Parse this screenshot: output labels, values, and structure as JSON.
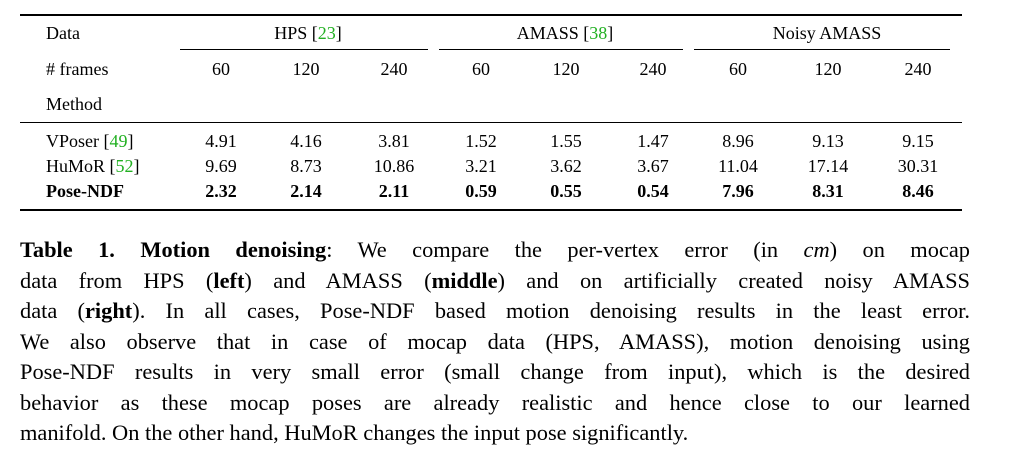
{
  "table": {
    "header_data_label": "Data",
    "groups": [
      {
        "name": "HPS",
        "cite": "23"
      },
      {
        "name": "AMASS",
        "cite": "38"
      },
      {
        "name": "Noisy AMASS",
        "cite": ""
      }
    ],
    "frames_label": "# frames",
    "frames": [
      "60",
      "120",
      "240",
      "60",
      "120",
      "240",
      "60",
      "120",
      "240"
    ],
    "method_label": "Method",
    "rows": [
      {
        "method": "VPoser",
        "cite": "49",
        "bold": false,
        "values": [
          "4.91",
          "4.16",
          "3.81",
          "1.52",
          "1.55",
          "1.47",
          "8.96",
          "9.13",
          "9.15"
        ]
      },
      {
        "method": "HuMoR",
        "cite": "52",
        "bold": false,
        "values": [
          "9.69",
          "8.73",
          "10.86",
          "3.21",
          "3.62",
          "3.67",
          "11.04",
          "17.14",
          "30.31"
        ]
      },
      {
        "method": "Pose-NDF",
        "cite": "",
        "bold": true,
        "values": [
          "2.32",
          "2.14",
          "2.11",
          "0.59",
          "0.55",
          "0.54",
          "7.96",
          "8.31",
          "8.46"
        ]
      }
    ]
  },
  "caption": {
    "label": "Table 1.",
    "title": "Motion denoising",
    "l1_a": ": We compare the per-vertex error (in ",
    "l1_unit": "cm",
    "l1_b": ") on mocap",
    "l2_a": "data from HPS (",
    "l2_left": "left",
    "l2_b": ") and AMASS (",
    "l2_middle": "middle",
    "l2_c": ") and on artificially created noisy AMASS",
    "l3_a": "data (",
    "l3_right": "right",
    "l3_b": "). In all cases, Pose-NDF based motion denoising results in the least error.",
    "l4": "We also observe that in case of mocap data (HPS, AMASS), motion denoising using",
    "l5": "Pose-NDF results in very small error (small change from input), which is the desired",
    "l6": "behavior as these mocap poses are already realistic and hence close to our learned",
    "l7": "manifold. On the other hand, HuMoR changes the input pose significantly."
  },
  "colors": {
    "citation": "#22b022"
  }
}
